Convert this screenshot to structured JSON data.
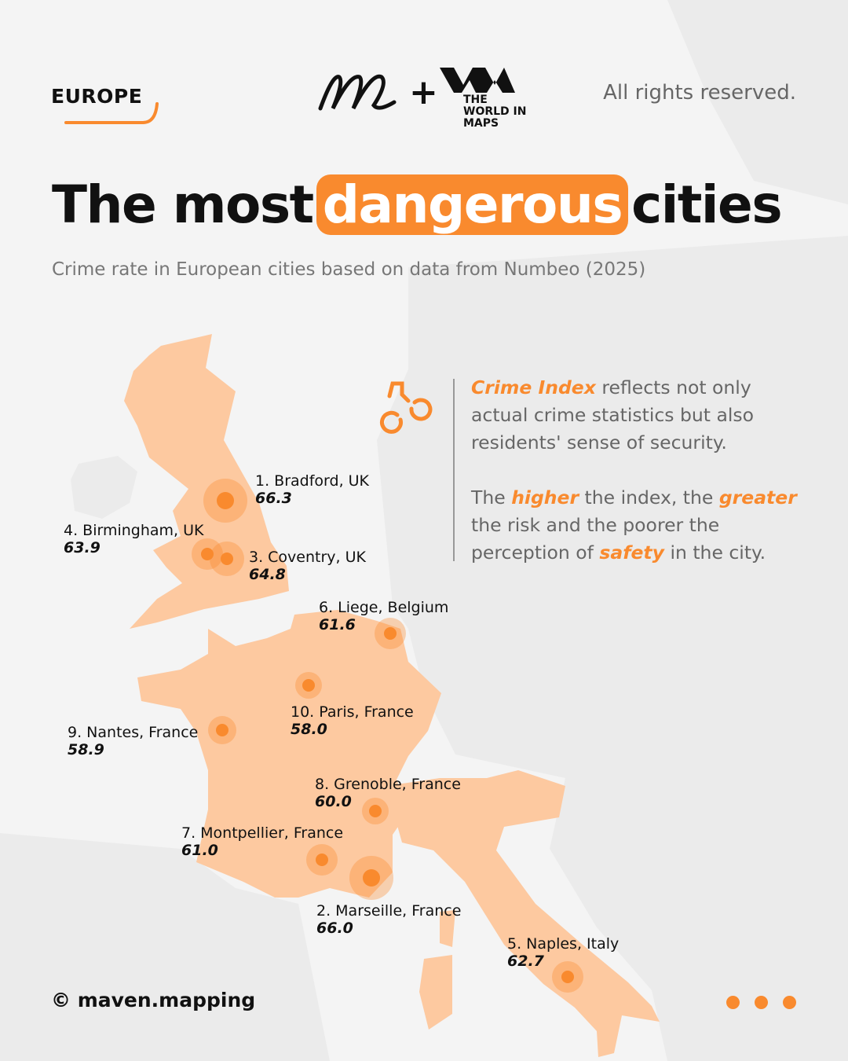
{
  "header": {
    "region": "EUROPE",
    "rights": "All rights reserved.",
    "logo_text": "THE WORLD IN MAPS",
    "plus": "+"
  },
  "title": {
    "before": "The most",
    "highlight": "dangerous",
    "after": "cities"
  },
  "subtitle": "Crime rate in European cities based on data from Numbeo (2025)",
  "info": {
    "p1_em": "Crime Index",
    "p1_rest": " reflects not only actual crime statistics but also residents' sense of security.",
    "p2_a": "The ",
    "p2_em1": "higher",
    "p2_b": " the index, the ",
    "p2_em2": "greater",
    "p2_c": " the risk and the poorer the perception of ",
    "p2_em3": "safety",
    "p2_d": " in the city.",
    "icon": "handcuffs-icon"
  },
  "colors": {
    "accent": "#f98a2e",
    "highlight_land": "#fdc9a0",
    "land": "#ebebeb",
    "background": "#f4f4f4"
  },
  "cities": [
    {
      "rank": "1. Bradford, UK",
      "value": "66.3"
    },
    {
      "rank": "2. Marseille, France",
      "value": "66.0"
    },
    {
      "rank": "3. Coventry, UK",
      "value": "64.8"
    },
    {
      "rank": "4. Birmingham, UK",
      "value": "63.9"
    },
    {
      "rank": "5. Naples, Italy",
      "value": "62.7"
    },
    {
      "rank": "6. Liege, Belgium",
      "value": "61.6"
    },
    {
      "rank": "7. Montpellier, France",
      "value": "61.0"
    },
    {
      "rank": "8. Grenoble, France",
      "value": "60.0"
    },
    {
      "rank": "9. Nantes, France",
      "value": "58.9"
    },
    {
      "rank": "10. Paris, France",
      "value": "58.0"
    }
  ],
  "footer": {
    "credit": "© maven.mapping"
  }
}
